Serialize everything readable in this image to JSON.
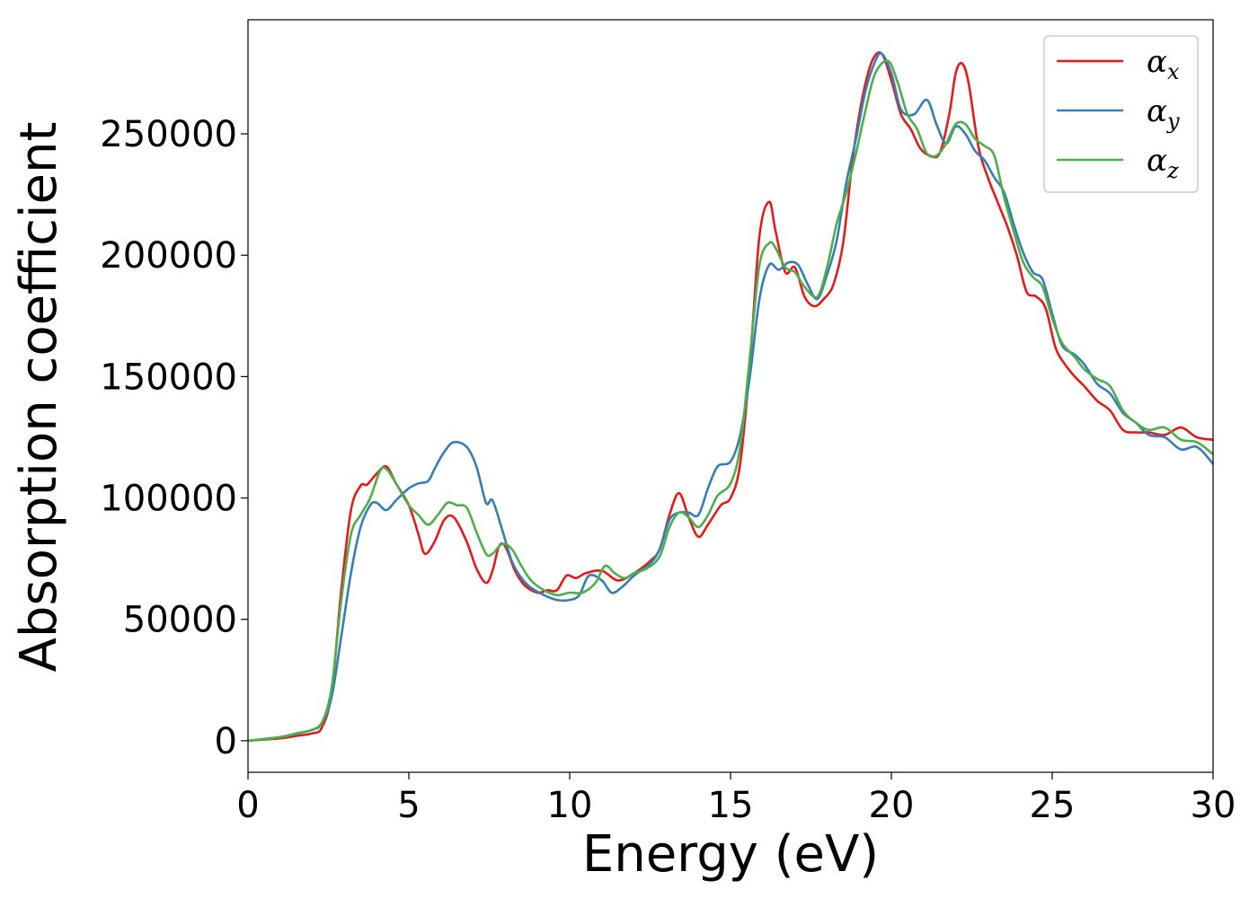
{
  "chart_data": {
    "type": "line",
    "title": "",
    "xlabel": "Energy (eV)",
    "ylabel": "Absorption coefficient",
    "xlim": [
      0,
      30
    ],
    "ylim": [
      -13000,
      297000
    ],
    "xticks": [
      0,
      5,
      10,
      15,
      20,
      25,
      30
    ],
    "yticks": [
      0,
      50000,
      100000,
      150000,
      200000,
      250000
    ],
    "grid": false,
    "legend_position": "top-right",
    "series": [
      {
        "name": "α",
        "subscript": "x",
        "color": "#e41a1c",
        "x": [
          0,
          1,
          1.5,
          2,
          2.3,
          2.6,
          2.9,
          3.2,
          3.5,
          3.7,
          4,
          4.3,
          4.6,
          5,
          5.3,
          5.5,
          5.8,
          6.1,
          6.4,
          6.8,
          7.1,
          7.4,
          7.6,
          7.8,
          8,
          8.3,
          8.6,
          9,
          9.3,
          9.6,
          9.9,
          10.2,
          10.5,
          11,
          11.5,
          12,
          12.5,
          12.8,
          13.1,
          13.4,
          13.7,
          14,
          14.3,
          14.7,
          15,
          15.3,
          15.6,
          15.9,
          16.2,
          16.4,
          16.7,
          17,
          17.3,
          17.6,
          17.9,
          18.2,
          18.5,
          18.8,
          19.1,
          19.4,
          19.7,
          20,
          20.3,
          20.6,
          20.9,
          21.2,
          21.5,
          21.8,
          22,
          22.2,
          22.4,
          22.7,
          23,
          23.3,
          23.6,
          23.9,
          24.2,
          24.5,
          24.8,
          25.1,
          25.4,
          25.7,
          26,
          26.4,
          26.8,
          27.2,
          27.6,
          28,
          28.5,
          29,
          29.5,
          30
        ],
        "y": [
          0,
          1000,
          2000,
          3000,
          5500,
          20000,
          62000,
          95000,
          105000,
          105500,
          110000,
          113000,
          106000,
          97000,
          85000,
          77000,
          82000,
          91000,
          92000,
          82000,
          71000,
          65000,
          70000,
          80000,
          80000,
          70000,
          64000,
          61000,
          62000,
          62000,
          68000,
          67000,
          69000,
          70000,
          66000,
          69000,
          74000,
          79000,
          93000,
          102000,
          92000,
          84000,
          89000,
          97000,
          100000,
          114000,
          155000,
          208000,
          222000,
          210000,
          193000,
          195000,
          183000,
          179000,
          182000,
          188000,
          205000,
          240000,
          265000,
          280000,
          283000,
          272000,
          258000,
          252000,
          244000,
          241000,
          242000,
          258000,
          275000,
          279000,
          271000,
          245000,
          232000,
          222000,
          212000,
          200000,
          185000,
          183000,
          178000,
          162000,
          155000,
          150000,
          146000,
          140000,
          136000,
          128000,
          127000,
          127000,
          126000,
          129000,
          125000,
          124000
        ]
      },
      {
        "name": "α",
        "subscript": "y",
        "color": "#377eb8",
        "x": [
          0,
          1,
          1.5,
          2,
          2.3,
          2.6,
          2.9,
          3.2,
          3.5,
          3.8,
          4,
          4.3,
          4.6,
          5,
          5.3,
          5.6,
          5.8,
          6.1,
          6.4,
          6.8,
          7.1,
          7.4,
          7.6,
          7.9,
          8.2,
          8.5,
          8.8,
          9.2,
          9.6,
          10,
          10.3,
          10.6,
          11,
          11.3,
          11.6,
          12,
          12.5,
          12.8,
          13.1,
          13.4,
          13.7,
          14,
          14.3,
          14.6,
          15,
          15.3,
          15.6,
          15.9,
          16.2,
          16.5,
          16.8,
          17.1,
          17.4,
          17.7,
          18,
          18.3,
          18.6,
          18.9,
          19.2,
          19.5,
          19.7,
          20,
          20.3,
          20.7,
          21.1,
          21.4,
          21.7,
          22,
          22.3,
          22.6,
          22.9,
          23.2,
          23.5,
          23.8,
          24.1,
          24.4,
          24.7,
          25,
          25.3,
          25.7,
          26,
          26.4,
          26.8,
          27.2,
          27.6,
          28,
          28.5,
          29,
          29.5,
          30
        ],
        "y": [
          0,
          1500,
          2800,
          4500,
          7500,
          18000,
          43000,
          69000,
          88000,
          97000,
          98000,
          95000,
          99000,
          104000,
          106000,
          107000,
          112000,
          119000,
          123000,
          121000,
          113000,
          98000,
          99000,
          87000,
          74000,
          67000,
          63000,
          60000,
          58000,
          58000,
          60000,
          68000,
          66000,
          61000,
          63000,
          68000,
          73000,
          79000,
          91000,
          94000,
          94000,
          93000,
          104000,
          113000,
          115000,
          126000,
          150000,
          182000,
          196000,
          194000,
          197000,
          196000,
          188000,
          182000,
          192000,
          206000,
          230000,
          248000,
          268000,
          280000,
          283000,
          275000,
          260000,
          258000,
          264000,
          254000,
          246000,
          253000,
          250000,
          243000,
          239000,
          232000,
          226000,
          213000,
          201000,
          193000,
          190000,
          176000,
          163000,
          159000,
          155000,
          147000,
          143000,
          135000,
          131000,
          126000,
          125000,
          120000,
          121000,
          114000
        ]
      },
      {
        "name": "α",
        "subscript": "z",
        "color": "#4daf4a",
        "x": [
          0,
          1,
          1.5,
          2,
          2.3,
          2.6,
          2.9,
          3.2,
          3.5,
          3.8,
          4.1,
          4.3,
          4.6,
          5,
          5.3,
          5.6,
          5.9,
          6.2,
          6.5,
          6.8,
          7.1,
          7.4,
          7.6,
          7.9,
          8.2,
          8.5,
          8.8,
          9.2,
          9.6,
          10,
          10.4,
          10.8,
          11.1,
          11.4,
          11.7,
          12,
          12.4,
          12.8,
          13.1,
          13.4,
          13.7,
          14,
          14.3,
          14.6,
          15,
          15.3,
          15.6,
          15.9,
          16.2,
          16.4,
          16.7,
          17,
          17.3,
          17.7,
          18,
          18.3,
          18.6,
          18.9,
          19.2,
          19.5,
          19.9,
          20.2,
          20.5,
          20.8,
          21.1,
          21.4,
          21.7,
          22,
          22.3,
          22.6,
          22.9,
          23.2,
          23.5,
          23.8,
          24.1,
          24.4,
          24.7,
          25,
          25.3,
          25.7,
          26,
          26.4,
          26.8,
          27.2,
          27.6,
          28,
          28.5,
          29,
          29.5,
          30
        ],
        "y": [
          0,
          1500,
          3000,
          4500,
          7500,
          22000,
          58000,
          85000,
          93000,
          100000,
          111000,
          112000,
          106000,
          97000,
          93000,
          89000,
          93000,
          98000,
          97000,
          96000,
          86000,
          77000,
          77000,
          81000,
          79000,
          72000,
          66000,
          62000,
          60000,
          61000,
          61000,
          65000,
          72000,
          69000,
          67000,
          69000,
          71000,
          76000,
          88000,
          94000,
          92000,
          88000,
          93000,
          101000,
          106000,
          121000,
          158000,
          196000,
          205000,
          203000,
          195000,
          193000,
          187000,
          183000,
          195000,
          213000,
          226000,
          242000,
          260000,
          275000,
          280000,
          271000,
          258000,
          252000,
          242000,
          241000,
          246000,
          254000,
          254000,
          248000,
          245000,
          241000,
          224000,
          210000,
          197000,
          191000,
          187000,
          174000,
          164000,
          158000,
          153000,
          149000,
          146000,
          136000,
          131000,
          128000,
          129000,
          124000,
          123000,
          118000
        ]
      }
    ]
  }
}
